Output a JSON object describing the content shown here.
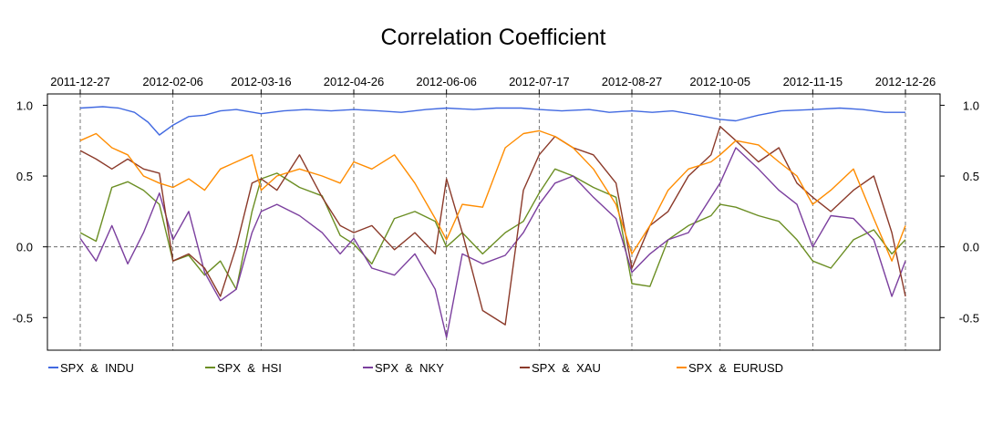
{
  "chart_data": {
    "type": "line",
    "title": "Correlation Coefficient",
    "xlabel": "",
    "ylabel": "",
    "x_ticks": [
      "2011-12-27",
      "2012-02-06",
      "2012-03-16",
      "2012-04-26",
      "2012-06-06",
      "2012-07-17",
      "2012-08-27",
      "2012-10-05",
      "2012-11-15",
      "2012-12-26"
    ],
    "y_ticks": [
      "1.0",
      "0.5",
      "0.0",
      "-0.5"
    ],
    "y_tick_values": [
      1.0,
      0.5,
      0.0,
      -0.5
    ],
    "ylim": [
      -0.73,
      1.08
    ],
    "xlim": [
      "2011-12-27",
      "2012-12-26"
    ],
    "grid": "vertical dashed lines at x tick dates, horizontal dashed line at 0",
    "legend_position": "bottom",
    "series": [
      {
        "name": "SPX  &  INDU",
        "color": "#4169E1",
        "x": [
          "2011-12-27",
          "2012-01-06",
          "2012-01-13",
          "2012-01-20",
          "2012-01-26",
          "2012-01-31",
          "2012-02-06",
          "2012-02-13",
          "2012-02-20",
          "2012-02-27",
          "2012-03-05",
          "2012-03-16",
          "2012-03-26",
          "2012-04-05",
          "2012-04-16",
          "2012-04-26",
          "2012-05-07",
          "2012-05-17",
          "2012-05-28",
          "2012-06-06",
          "2012-06-18",
          "2012-06-28",
          "2012-07-09",
          "2012-07-17",
          "2012-07-27",
          "2012-08-08",
          "2012-08-17",
          "2012-08-27",
          "2012-09-05",
          "2012-09-14",
          "2012-09-25",
          "2012-10-05",
          "2012-10-12",
          "2012-10-22",
          "2012-11-01",
          "2012-11-15",
          "2012-11-27",
          "2012-12-07",
          "2012-12-17",
          "2012-12-26"
        ],
        "y": [
          0.98,
          0.99,
          0.98,
          0.95,
          0.88,
          0.79,
          0.86,
          0.92,
          0.93,
          0.96,
          0.97,
          0.94,
          0.96,
          0.97,
          0.96,
          0.97,
          0.96,
          0.95,
          0.97,
          0.98,
          0.97,
          0.98,
          0.98,
          0.97,
          0.96,
          0.97,
          0.95,
          0.96,
          0.95,
          0.96,
          0.93,
          0.9,
          0.89,
          0.93,
          0.96,
          0.97,
          0.98,
          0.97,
          0.95,
          0.95
        ]
      },
      {
        "name": "SPX  &  HSI",
        "color": "#6B8E23",
        "x": [
          "2011-12-27",
          "2012-01-03",
          "2012-01-10",
          "2012-01-17",
          "2012-01-24",
          "2012-01-31",
          "2012-02-06",
          "2012-02-13",
          "2012-02-20",
          "2012-02-27",
          "2012-03-05",
          "2012-03-12",
          "2012-03-16",
          "2012-03-23",
          "2012-04-02",
          "2012-04-12",
          "2012-04-20",
          "2012-04-26",
          "2012-05-04",
          "2012-05-14",
          "2012-05-23",
          "2012-06-01",
          "2012-06-06",
          "2012-06-13",
          "2012-06-22",
          "2012-07-02",
          "2012-07-10",
          "2012-07-17",
          "2012-07-24",
          "2012-08-01",
          "2012-08-10",
          "2012-08-20",
          "2012-08-27",
          "2012-09-04",
          "2012-09-12",
          "2012-09-21",
          "2012-10-01",
          "2012-10-05",
          "2012-10-12",
          "2012-10-22",
          "2012-10-31",
          "2012-11-08",
          "2012-11-15",
          "2012-11-23",
          "2012-12-03",
          "2012-12-12",
          "2012-12-20",
          "2012-12-26"
        ],
        "y": [
          0.1,
          0.04,
          0.42,
          0.46,
          0.4,
          0.3,
          -0.1,
          -0.06,
          -0.2,
          -0.1,
          -0.3,
          0.25,
          0.48,
          0.52,
          0.42,
          0.36,
          0.08,
          0.02,
          -0.12,
          0.2,
          0.25,
          0.18,
          0.0,
          0.1,
          -0.05,
          0.1,
          0.18,
          0.38,
          0.55,
          0.5,
          0.42,
          0.35,
          -0.26,
          -0.28,
          0.05,
          0.15,
          0.22,
          0.3,
          0.28,
          0.22,
          0.18,
          0.05,
          -0.1,
          -0.15,
          0.05,
          0.12,
          -0.05,
          0.05
        ]
      },
      {
        "name": "SPX  &  NKY",
        "color": "#7B3F9E",
        "x": [
          "2011-12-27",
          "2012-01-03",
          "2012-01-10",
          "2012-01-17",
          "2012-01-24",
          "2012-01-31",
          "2012-02-06",
          "2012-02-13",
          "2012-02-20",
          "2012-02-27",
          "2012-03-05",
          "2012-03-12",
          "2012-03-16",
          "2012-03-23",
          "2012-04-02",
          "2012-04-12",
          "2012-04-20",
          "2012-04-26",
          "2012-05-04",
          "2012-05-14",
          "2012-05-23",
          "2012-06-01",
          "2012-06-06",
          "2012-06-13",
          "2012-06-22",
          "2012-07-02",
          "2012-07-10",
          "2012-07-17",
          "2012-07-24",
          "2012-08-01",
          "2012-08-10",
          "2012-08-20",
          "2012-08-27",
          "2012-09-04",
          "2012-09-12",
          "2012-09-21",
          "2012-10-01",
          "2012-10-05",
          "2012-10-12",
          "2012-10-22",
          "2012-10-31",
          "2012-11-08",
          "2012-11-15",
          "2012-11-23",
          "2012-12-03",
          "2012-12-12",
          "2012-12-20",
          "2012-12-26"
        ],
        "y": [
          0.06,
          -0.1,
          0.15,
          -0.12,
          0.1,
          0.38,
          0.05,
          0.25,
          -0.18,
          -0.38,
          -0.3,
          0.1,
          0.25,
          0.3,
          0.22,
          0.1,
          -0.05,
          0.06,
          -0.15,
          -0.2,
          -0.05,
          -0.3,
          -0.64,
          -0.05,
          -0.12,
          -0.06,
          0.1,
          0.3,
          0.45,
          0.5,
          0.35,
          0.2,
          -0.18,
          -0.05,
          0.05,
          0.1,
          0.35,
          0.45,
          0.7,
          0.55,
          0.4,
          0.3,
          0.0,
          0.22,
          0.2,
          0.05,
          -0.35,
          -0.1
        ]
      },
      {
        "name": "SPX  &  XAU",
        "color": "#8B3A2A",
        "x": [
          "2011-12-27",
          "2012-01-03",
          "2012-01-10",
          "2012-01-17",
          "2012-01-24",
          "2012-01-31",
          "2012-02-06",
          "2012-02-13",
          "2012-02-20",
          "2012-02-27",
          "2012-03-05",
          "2012-03-12",
          "2012-03-16",
          "2012-03-23",
          "2012-04-02",
          "2012-04-12",
          "2012-04-20",
          "2012-04-26",
          "2012-05-04",
          "2012-05-14",
          "2012-05-23",
          "2012-06-01",
          "2012-06-06",
          "2012-06-13",
          "2012-06-22",
          "2012-07-02",
          "2012-07-10",
          "2012-07-17",
          "2012-07-24",
          "2012-08-01",
          "2012-08-10",
          "2012-08-20",
          "2012-08-27",
          "2012-09-04",
          "2012-09-12",
          "2012-09-21",
          "2012-10-01",
          "2012-10-05",
          "2012-10-12",
          "2012-10-22",
          "2012-10-31",
          "2012-11-08",
          "2012-11-15",
          "2012-11-23",
          "2012-12-03",
          "2012-12-12",
          "2012-12-20",
          "2012-12-26"
        ],
        "y": [
          0.68,
          0.62,
          0.55,
          0.62,
          0.55,
          0.52,
          -0.1,
          -0.05,
          -0.15,
          -0.35,
          0.0,
          0.45,
          0.48,
          0.4,
          0.65,
          0.35,
          0.15,
          0.1,
          0.15,
          -0.02,
          0.1,
          -0.05,
          0.48,
          0.1,
          -0.45,
          -0.55,
          0.4,
          0.65,
          0.78,
          0.7,
          0.65,
          0.45,
          -0.15,
          0.15,
          0.25,
          0.5,
          0.65,
          0.85,
          0.75,
          0.6,
          0.7,
          0.45,
          0.35,
          0.25,
          0.4,
          0.5,
          0.1,
          -0.35
        ]
      },
      {
        "name": "SPX  &  EURUSD",
        "color": "#FF8C00",
        "x": [
          "2011-12-27",
          "2012-01-03",
          "2012-01-10",
          "2012-01-17",
          "2012-01-24",
          "2012-01-31",
          "2012-02-06",
          "2012-02-13",
          "2012-02-20",
          "2012-02-27",
          "2012-03-05",
          "2012-03-12",
          "2012-03-16",
          "2012-03-23",
          "2012-04-02",
          "2012-04-12",
          "2012-04-20",
          "2012-04-26",
          "2012-05-04",
          "2012-05-14",
          "2012-05-23",
          "2012-06-01",
          "2012-06-06",
          "2012-06-13",
          "2012-06-22",
          "2012-07-02",
          "2012-07-10",
          "2012-07-17",
          "2012-07-24",
          "2012-08-01",
          "2012-08-10",
          "2012-08-20",
          "2012-08-27",
          "2012-09-04",
          "2012-09-12",
          "2012-09-21",
          "2012-10-01",
          "2012-10-05",
          "2012-10-12",
          "2012-10-22",
          "2012-10-31",
          "2012-11-08",
          "2012-11-15",
          "2012-11-23",
          "2012-12-03",
          "2012-12-12",
          "2012-12-20",
          "2012-12-26"
        ],
        "y": [
          0.75,
          0.8,
          0.7,
          0.65,
          0.5,
          0.45,
          0.42,
          0.48,
          0.4,
          0.55,
          0.6,
          0.65,
          0.4,
          0.5,
          0.55,
          0.5,
          0.45,
          0.6,
          0.55,
          0.65,
          0.45,
          0.2,
          0.05,
          0.3,
          0.28,
          0.7,
          0.8,
          0.82,
          0.78,
          0.7,
          0.55,
          0.3,
          -0.05,
          0.15,
          0.4,
          0.55,
          0.6,
          0.65,
          0.75,
          0.72,
          0.6,
          0.5,
          0.3,
          0.4,
          0.55,
          0.2,
          -0.1,
          0.15
        ]
      }
    ]
  }
}
